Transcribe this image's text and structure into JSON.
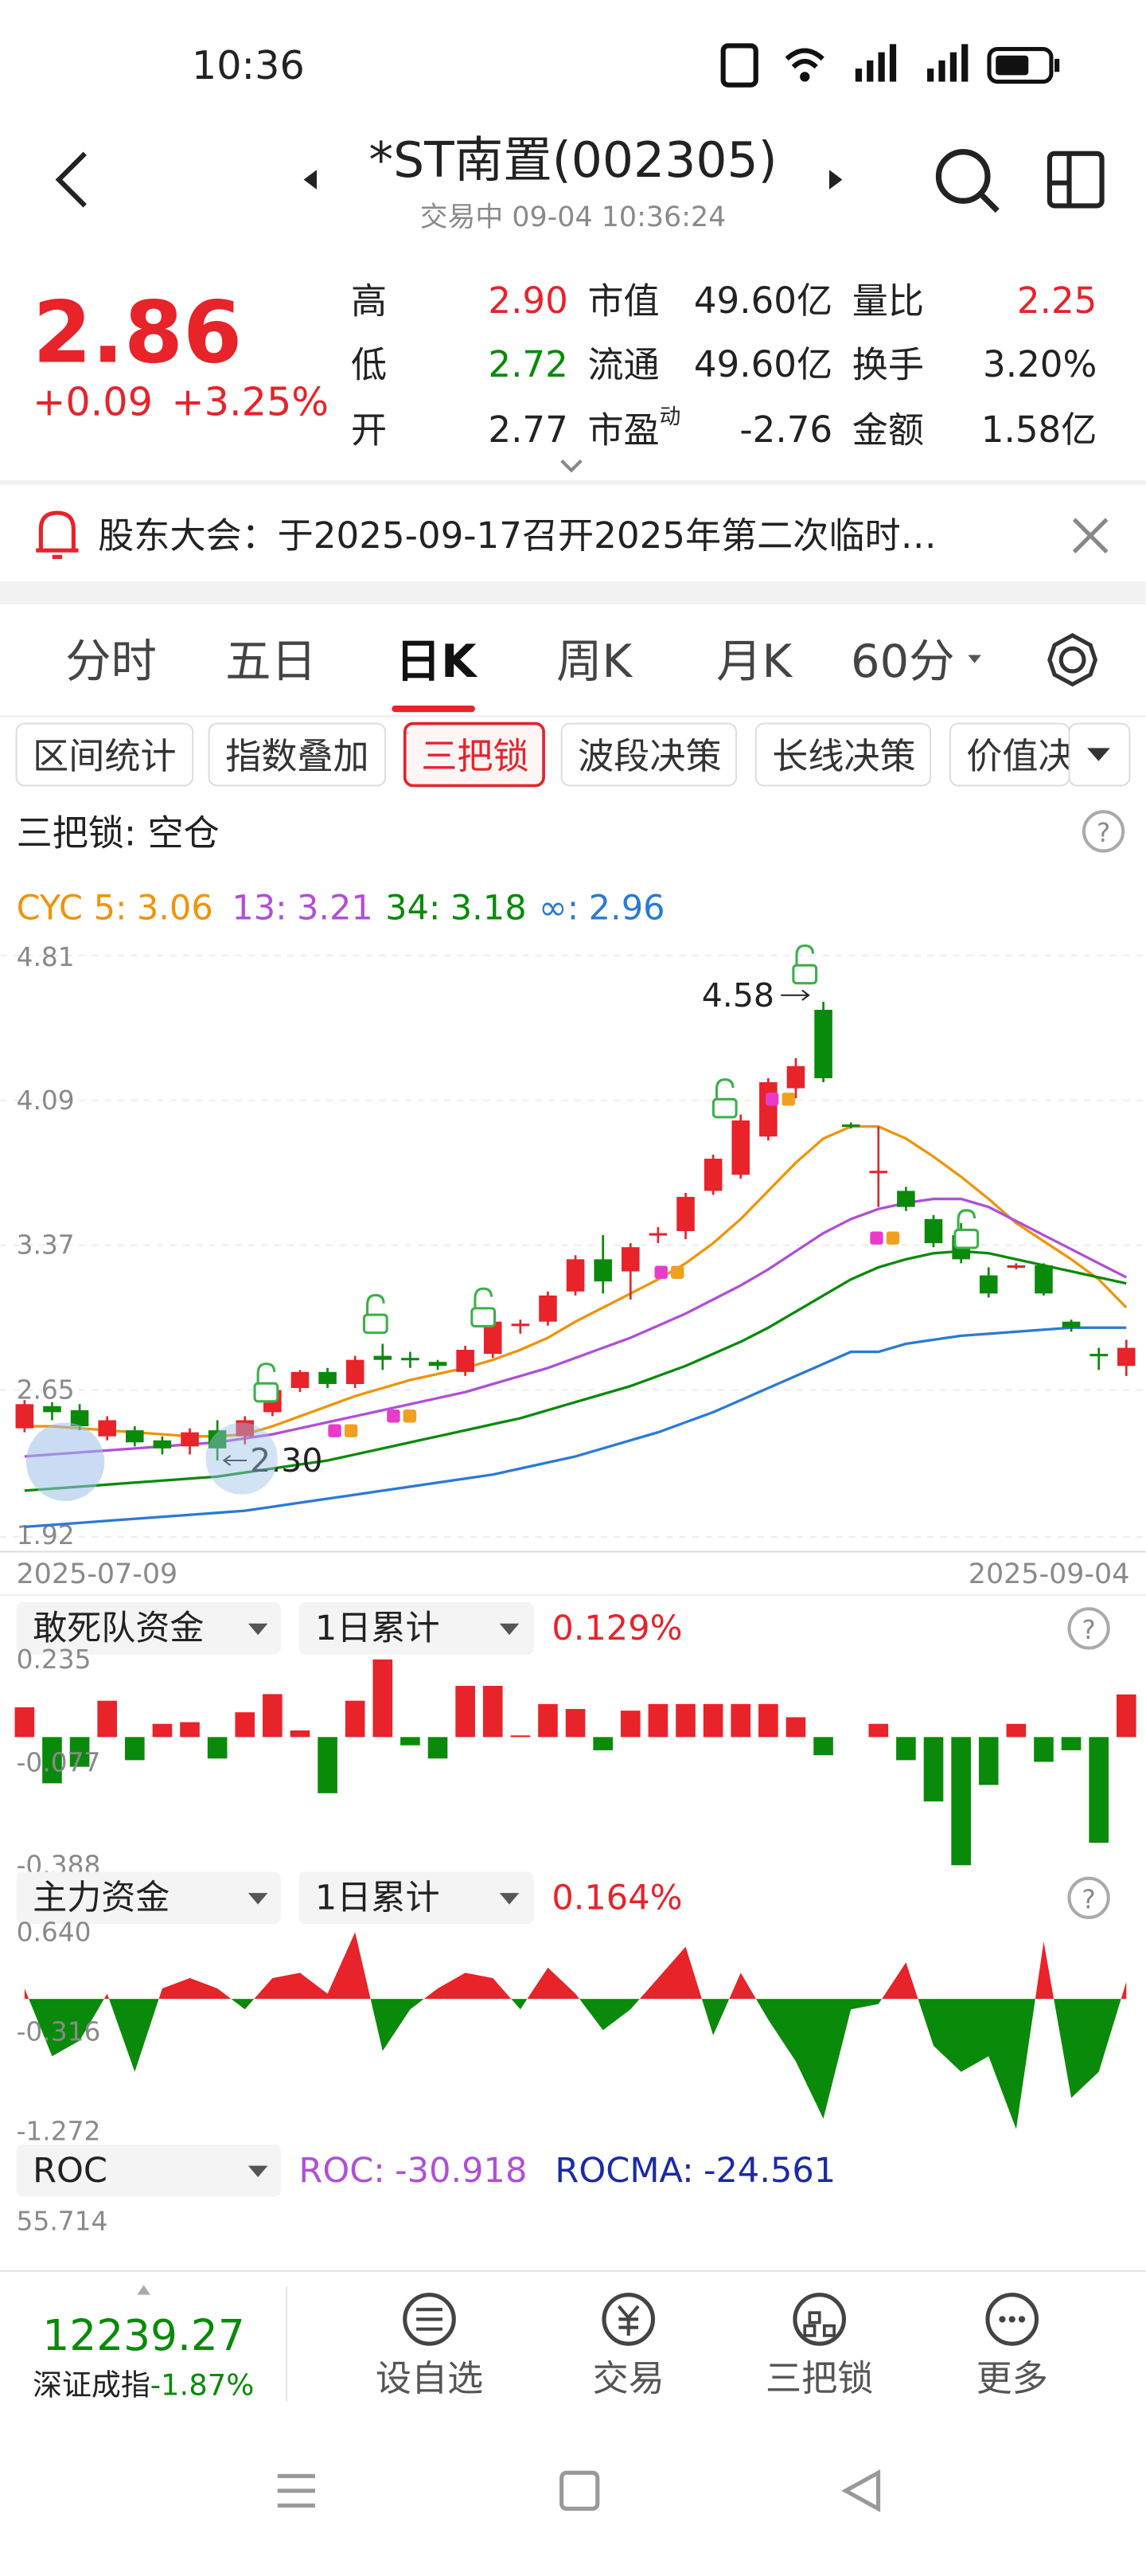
{
  "status_bar": {
    "time": "10:36"
  },
  "header": {
    "title": "*ST南置(002305)",
    "subtitle": "交易中 09-04 10:36:24"
  },
  "quote": {
    "price": "2.86",
    "change": "+0.09",
    "change_pct": "+3.25%",
    "stats": [
      {
        "label": "高",
        "value": "2.90",
        "color": "#e8232a"
      },
      {
        "label": "市值",
        "value": "49.60亿"
      },
      {
        "label": "量比",
        "value": "2.25",
        "color": "#e8232a"
      },
      {
        "label": "低",
        "value": "2.72",
        "color": "#0a8a0a"
      },
      {
        "label": "流通",
        "value": "49.60亿"
      },
      {
        "label": "换手",
        "value": "3.20%"
      },
      {
        "label": "开",
        "value": "2.77"
      },
      {
        "label": "市盈",
        "sup": "动",
        "value": "-2.76"
      },
      {
        "label": "金额",
        "value": "1.58亿"
      }
    ]
  },
  "notice": {
    "text": "股东大会：于2025-09-17召开2025年第二次临时…"
  },
  "tabs": [
    "分时",
    "五日",
    "日K",
    "周K",
    "月K",
    "60分"
  ],
  "chips": [
    "区间统计",
    "指数叠加",
    "三把锁",
    "波段决策",
    "长线决策",
    "价值决"
  ],
  "strategy_status": "三把锁: 空仓",
  "chart_data": [
    {
      "type": "candlestick",
      "categories": [
        "2025-07-09",
        null,
        null,
        null,
        null,
        null,
        null,
        null,
        null,
        null,
        null,
        null,
        null,
        null,
        null,
        null,
        null,
        null,
        null,
        null,
        null,
        null,
        null,
        null,
        null,
        null,
        null,
        null,
        null,
        null,
        null,
        null,
        null,
        null,
        null,
        null,
        null,
        null,
        null,
        null,
        "2025-09-04"
      ],
      "open": [
        2.46,
        2.57,
        2.55,
        2.42,
        2.45,
        2.4,
        2.37,
        2.45,
        2.42,
        2.54,
        2.66,
        2.74,
        2.68,
        2.82,
        2.81,
        2.79,
        2.74,
        2.83,
        2.97,
        2.99,
        3.14,
        3.3,
        3.24,
        3.42,
        3.44,
        3.64,
        3.72,
        3.91,
        4.15,
        4.54,
        3.97,
        3.73,
        3.64,
        3.5,
        3.42,
        3.22,
        3.26,
        3.27,
        2.99,
        2.83,
        2.77
      ],
      "close": [
        2.58,
        2.54,
        2.47,
        2.5,
        2.39,
        2.36,
        2.44,
        2.36,
        2.5,
        2.65,
        2.74,
        2.68,
        2.8,
        2.8,
        2.8,
        2.77,
        2.85,
        2.99,
        2.98,
        3.12,
        3.3,
        3.19,
        3.36,
        3.43,
        3.61,
        3.8,
        3.99,
        4.18,
        4.26,
        4.2,
        3.96,
        3.74,
        3.56,
        3.38,
        3.3,
        3.13,
        3.27,
        3.13,
        2.96,
        2.82,
        2.86
      ],
      "high": [
        2.6,
        2.59,
        2.58,
        2.52,
        2.47,
        2.42,
        2.46,
        2.5,
        2.52,
        2.68,
        2.75,
        2.76,
        2.82,
        2.88,
        2.84,
        2.8,
        2.87,
        3.02,
        3.0,
        3.14,
        3.32,
        3.42,
        3.38,
        3.46,
        3.63,
        3.82,
        4.02,
        4.2,
        4.3,
        4.58,
        3.98,
        3.96,
        3.66,
        3.52,
        3.48,
        3.26,
        3.28,
        3.28,
        3.0,
        2.86,
        2.9
      ],
      "low": [
        2.44,
        2.5,
        2.45,
        2.4,
        2.37,
        2.33,
        2.33,
        2.3,
        2.38,
        2.52,
        2.64,
        2.66,
        2.66,
        2.75,
        2.76,
        2.75,
        2.72,
        2.81,
        2.93,
        2.97,
        3.12,
        3.13,
        3.1,
        3.38,
        3.4,
        3.62,
        3.7,
        3.89,
        4.1,
        4.18,
        3.95,
        3.56,
        3.54,
        3.36,
        3.28,
        3.11,
        3.25,
        3.12,
        2.94,
        2.75,
        2.72
      ],
      "up_color": "#e8232a",
      "down_color": "#0a8a0a",
      "ylim": [
        1.92,
        4.81
      ],
      "yticks": [
        4.81,
        4.09,
        3.37,
        2.65,
        1.92
      ],
      "grid": true,
      "max_label": 4.58,
      "min_label": {
        "value": 2.3,
        "label": "2.30"
      },
      "series": [
        {
          "name": "CYC 5:",
          "color": "#f0940a",
          "values": [
            2.47,
            2.47,
            2.46,
            2.45,
            2.44,
            2.43,
            2.42,
            2.42,
            2.43,
            2.47,
            2.52,
            2.57,
            2.62,
            2.66,
            2.7,
            2.73,
            2.76,
            2.8,
            2.85,
            2.91,
            2.99,
            3.06,
            3.13,
            3.2,
            3.28,
            3.38,
            3.5,
            3.64,
            3.78,
            3.9,
            3.96,
            3.96,
            3.9,
            3.81,
            3.71,
            3.6,
            3.48,
            3.39,
            3.3,
            3.2,
            3.06
          ]
        },
        {
          "name": "13:",
          "color": "#b04fd8",
          "values": [
            2.32,
            2.33,
            2.34,
            2.35,
            2.36,
            2.37,
            2.38,
            2.39,
            2.41,
            2.43,
            2.46,
            2.49,
            2.52,
            2.55,
            2.58,
            2.61,
            2.64,
            2.68,
            2.72,
            2.76,
            2.81,
            2.86,
            2.91,
            2.97,
            3.03,
            3.1,
            3.17,
            3.25,
            3.34,
            3.43,
            3.5,
            3.55,
            3.58,
            3.6,
            3.6,
            3.56,
            3.49,
            3.42,
            3.35,
            3.28,
            3.21
          ]
        },
        {
          "name": "34:",
          "color": "#0a8a0a",
          "values": [
            2.15,
            2.16,
            2.17,
            2.18,
            2.19,
            2.2,
            2.21,
            2.22,
            2.24,
            2.26,
            2.28,
            2.3,
            2.33,
            2.36,
            2.39,
            2.42,
            2.45,
            2.48,
            2.51,
            2.55,
            2.59,
            2.63,
            2.67,
            2.72,
            2.77,
            2.83,
            2.89,
            2.96,
            3.04,
            3.12,
            3.2,
            3.26,
            3.3,
            3.33,
            3.34,
            3.33,
            3.3,
            3.27,
            3.24,
            3.21,
            3.18
          ]
        },
        {
          "name": "∞:",
          "color": "#2a7ad8",
          "values": [
            1.97,
            1.98,
            1.99,
            2.0,
            2.01,
            2.02,
            2.03,
            2.04,
            2.05,
            2.07,
            2.09,
            2.11,
            2.13,
            2.15,
            2.17,
            2.19,
            2.21,
            2.23,
            2.26,
            2.29,
            2.32,
            2.36,
            2.4,
            2.44,
            2.49,
            2.54,
            2.6,
            2.66,
            2.72,
            2.78,
            2.84,
            2.84,
            2.88,
            2.9,
            2.92,
            2.93,
            2.94,
            2.95,
            2.96,
            2.96,
            2.96
          ]
        }
      ]
    },
    {
      "type": "bar",
      "indicator": "敢死队资金",
      "period": "1日累计",
      "value_text": "0.129%",
      "values": [
        0.09,
        -0.14,
        -0.09,
        0.11,
        -0.07,
        0.04,
        0.045,
        -0.065,
        0.075,
        0.13,
        0.02,
        -0.17,
        0.11,
        0.235,
        -0.025,
        -0.065,
        0.155,
        0.155,
        0.005,
        0.1,
        0.085,
        -0.04,
        0.08,
        0.1,
        0.1,
        0.1,
        0.1,
        0.1,
        0.06,
        -0.055,
        0,
        0.04,
        -0.07,
        -0.195,
        -0.388,
        -0.145,
        0.04,
        -0.075,
        -0.04,
        -0.32,
        0.129
      ],
      "up_color": "#e8232a",
      "down_color": "#0a8a0a",
      "ylim": [
        -0.388,
        0.235
      ],
      "yticks": [
        0.235,
        -0.077,
        -0.388
      ]
    },
    {
      "type": "area",
      "indicator": "主力资金",
      "period": "1日累计",
      "value_text": "0.164%",
      "values": [
        0.1,
        -0.55,
        -0.4,
        0.05,
        -0.7,
        0.1,
        0.2,
        0.1,
        -0.1,
        0.2,
        0.25,
        0.05,
        0.64,
        -0.5,
        -0.1,
        0.1,
        0.25,
        0.2,
        -0.1,
        0.3,
        0.05,
        -0.3,
        -0.1,
        0.2,
        0.5,
        -0.35,
        0.25,
        -0.2,
        -0.6,
        -1.15,
        -0.1,
        -0.05,
        0.35,
        -0.45,
        -0.7,
        -0.55,
        -1.25,
        0.55,
        -0.95,
        -0.7,
        0.164
      ],
      "up_color": "#e8232a",
      "down_color": "#0a8a0a",
      "ylim": [
        -1.272,
        0.64
      ],
      "yticks": [
        {
          "value": 0.64,
          "label": "0.640"
        },
        -0.316,
        -1.272
      ]
    },
    {
      "type": "line",
      "indicator": "ROC",
      "legend": [
        {
          "name": "ROC:",
          "value": "-30.918",
          "color": "#b04fd8"
        },
        {
          "name": "ROCMA:",
          "value": "-24.561",
          "color": "#1a2aa8"
        }
      ],
      "yticks": [
        55.714
      ]
    }
  ],
  "bottom_bar": {
    "index_value": "12239.27",
    "index_name": "深证成指",
    "index_change": "-1.87%",
    "nav": [
      "设自选",
      "交易",
      "三把锁",
      "更多"
    ]
  }
}
